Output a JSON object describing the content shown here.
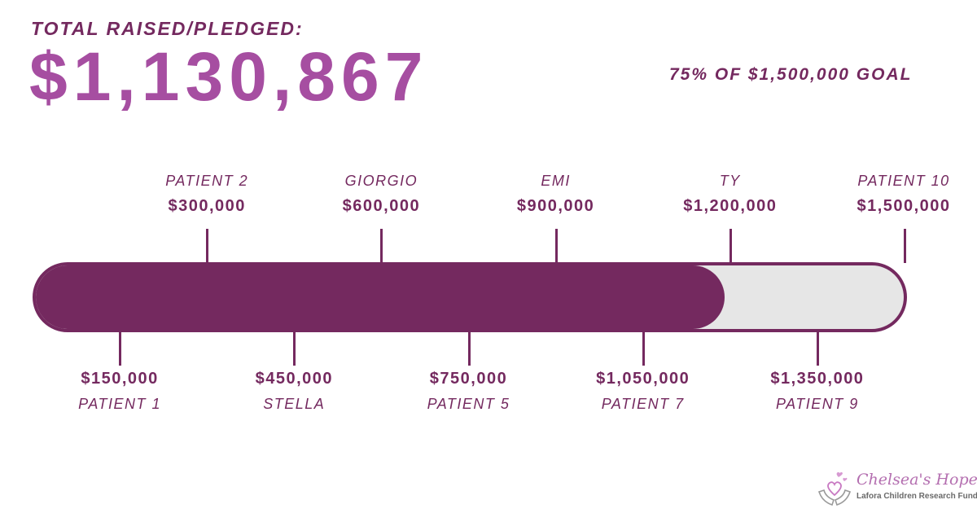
{
  "header": {
    "label": "TOTAL RAISED/PLEDGED:",
    "total": "$1,130,867",
    "goal_text": "75% OF $1,500,000 GOAL"
  },
  "progress": {
    "raised": 1130867,
    "goal": 1500000,
    "fraction": 0.754
  },
  "milestones": {
    "top": [
      {
        "name": "PATIENT 2",
        "amount": "$300,000",
        "value": 300000
      },
      {
        "name": "GIORGIO",
        "amount": "$600,000",
        "value": 600000
      },
      {
        "name": "EMI",
        "amount": "$900,000",
        "value": 900000
      },
      {
        "name": "TY",
        "amount": "$1,200,000",
        "value": 1200000
      },
      {
        "name": "PATIENT 10",
        "amount": "$1,500,000",
        "value": 1500000
      }
    ],
    "bottom": [
      {
        "name": "PATIENT 1",
        "amount": "$150,000",
        "value": 150000
      },
      {
        "name": "STELLA",
        "amount": "$450,000",
        "value": 450000
      },
      {
        "name": "PATIENT 5",
        "amount": "$750,000",
        "value": 750000
      },
      {
        "name": "PATIENT 7",
        "amount": "$1,050,000",
        "value": 1050000
      },
      {
        "name": "PATIENT 9",
        "amount": "$1,350,000",
        "value": 1350000
      }
    ]
  },
  "logo": {
    "title": "Chelsea's Hope",
    "subtitle": "Lafora Children Research Fund",
    "icon": "hands-hearts-icon"
  },
  "colors": {
    "primary": "#74295f",
    "accent": "#a64ea1",
    "track": "#e6e6e6"
  }
}
